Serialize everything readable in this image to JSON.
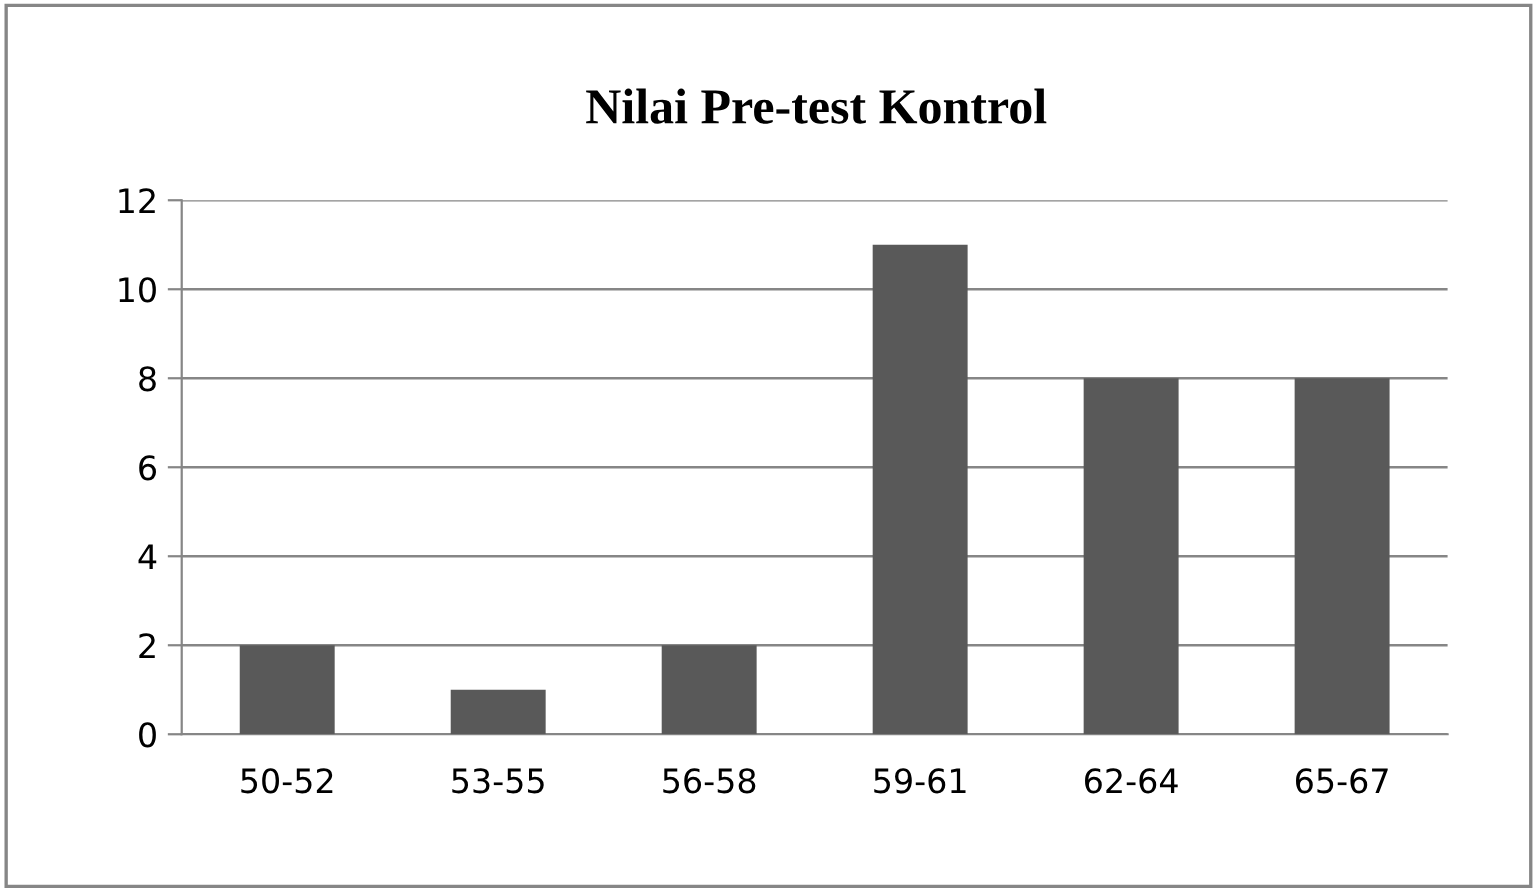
{
  "chart_data": {
    "type": "bar",
    "title": "Nilai Pre-test Kontrol",
    "categories": [
      "50-52",
      "53-55",
      "56-58",
      "59-61",
      "62-64",
      "65-67"
    ],
    "values": [
      2,
      1,
      2,
      11,
      8,
      8
    ],
    "color": "#595959",
    "ylim": [
      0,
      12
    ],
    "yticks": [
      0,
      2,
      4,
      6,
      8,
      10,
      12
    ],
    "grid": "y",
    "legend": false
  }
}
